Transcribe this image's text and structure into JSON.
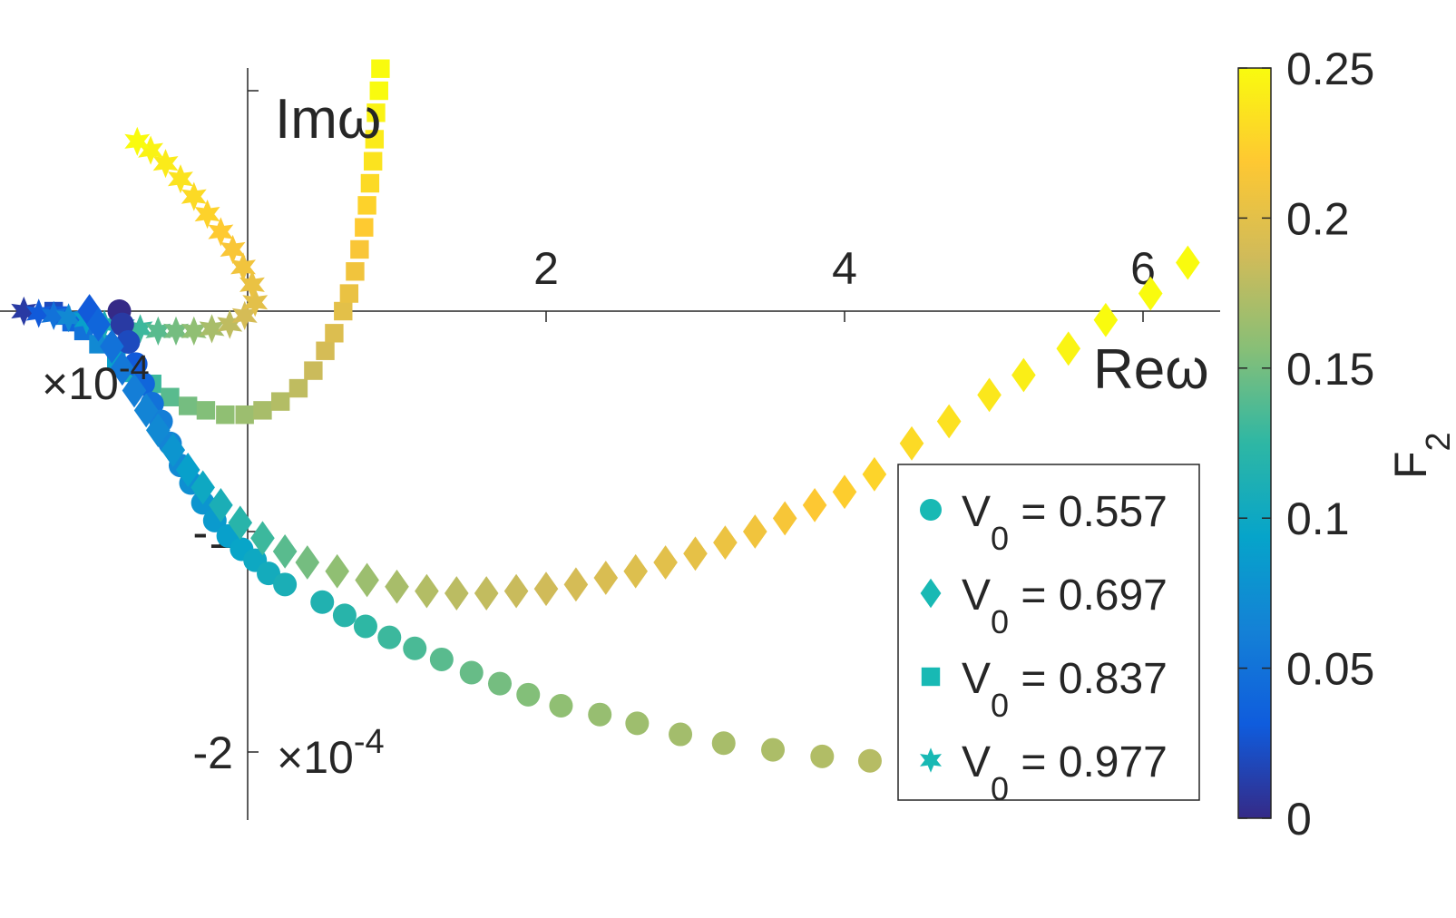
{
  "chart_data": {
    "type": "scatter",
    "xlabel": "Reω",
    "ylabel": "Imω",
    "x_multiplier": "×10-4",
    "y_multiplier": "×10-4",
    "xlim": [
      -0.75,
      6.5
    ],
    "ylim": [
      -2.3,
      1.1
    ],
    "x_ticks": [
      2,
      4,
      6
    ],
    "x_tick_labels": [
      "2",
      "4",
      "6"
    ],
    "y_ticks": [
      -1,
      -2
    ],
    "y_tick_labels": [
      "-1",
      "-2"
    ],
    "grid": false,
    "legend_position": "bottom-right",
    "colorbar": {
      "label": "F2",
      "label_main": "F",
      "label_sub": "2",
      "range": [
        0,
        0.25
      ],
      "ticks": [
        0,
        0.05,
        0.1,
        0.15,
        0.2,
        0.25
      ],
      "tick_labels": [
        "0",
        "0.05",
        "0.1",
        "0.15",
        "0.2",
        "0.25"
      ],
      "colormap": "parula"
    },
    "series": [
      {
        "name": "V0 = 0.557",
        "name_main": "V",
        "name_sub": "0",
        "name_rest": " = 0.557",
        "marker": "circle",
        "legend_color": "#18b9b4",
        "points": [
          [
            -0.86,
            0.0,
            0.0
          ],
          [
            -0.84,
            -0.06,
            0.01
          ],
          [
            -0.8,
            -0.14,
            0.02
          ],
          [
            -0.75,
            -0.24,
            0.03
          ],
          [
            -0.7,
            -0.33,
            0.04
          ],
          [
            -0.64,
            -0.42,
            0.05
          ],
          [
            -0.58,
            -0.5,
            0.06
          ],
          [
            -0.52,
            -0.6,
            0.065
          ],
          [
            -0.45,
            -0.7,
            0.07
          ],
          [
            -0.38,
            -0.78,
            0.075
          ],
          [
            -0.3,
            -0.87,
            0.08
          ],
          [
            -0.22,
            -0.95,
            0.085
          ],
          [
            -0.13,
            -1.02,
            0.09
          ],
          [
            -0.04,
            -1.08,
            0.095
          ],
          [
            0.05,
            -1.13,
            0.1
          ],
          [
            0.14,
            -1.19,
            0.105
          ],
          [
            0.25,
            -1.24,
            0.11
          ],
          [
            0.5,
            -1.32,
            0.115
          ],
          [
            0.65,
            -1.38,
            0.12
          ],
          [
            0.79,
            -1.43,
            0.125
          ],
          [
            0.95,
            -1.48,
            0.13
          ],
          [
            1.12,
            -1.53,
            0.135
          ],
          [
            1.3,
            -1.58,
            0.14
          ],
          [
            1.5,
            -1.64,
            0.145
          ],
          [
            1.69,
            -1.69,
            0.15
          ],
          [
            1.88,
            -1.74,
            0.155
          ],
          [
            2.1,
            -1.79,
            0.16
          ],
          [
            2.36,
            -1.83,
            0.163
          ],
          [
            2.61,
            -1.87,
            0.166
          ],
          [
            2.9,
            -1.92,
            0.168
          ],
          [
            3.19,
            -1.96,
            0.17
          ],
          [
            3.52,
            -1.99,
            0.172
          ],
          [
            3.85,
            -2.02,
            0.174
          ],
          [
            4.17,
            -2.04,
            0.176
          ]
        ]
      },
      {
        "name": "V0 = 0.697",
        "name_main": "V",
        "name_sub": "0",
        "name_rest": " = 0.697",
        "marker": "diamond",
        "legend_color": "#18b9b4",
        "points": [
          [
            -1.06,
            0.0,
            0.03
          ],
          [
            -1.0,
            -0.06,
            0.04
          ],
          [
            -0.91,
            -0.16,
            0.05
          ],
          [
            -0.84,
            -0.26,
            0.055
          ],
          [
            -0.76,
            -0.36,
            0.06
          ],
          [
            -0.68,
            -0.45,
            0.065
          ],
          [
            -0.6,
            -0.54,
            0.07
          ],
          [
            -0.5,
            -0.63,
            0.08
          ],
          [
            -0.4,
            -0.72,
            0.09
          ],
          [
            -0.3,
            -0.8,
            0.1
          ],
          [
            -0.18,
            -0.88,
            0.11
          ],
          [
            -0.05,
            -0.96,
            0.12
          ],
          [
            0.1,
            -1.03,
            0.13
          ],
          [
            0.25,
            -1.09,
            0.14
          ],
          [
            0.4,
            -1.14,
            0.15
          ],
          [
            0.6,
            -1.18,
            0.16
          ],
          [
            0.8,
            -1.22,
            0.165
          ],
          [
            1.0,
            -1.25,
            0.17
          ],
          [
            1.2,
            -1.27,
            0.175
          ],
          [
            1.4,
            -1.28,
            0.178
          ],
          [
            1.6,
            -1.28,
            0.181
          ],
          [
            1.8,
            -1.27,
            0.184
          ],
          [
            2.0,
            -1.26,
            0.187
          ],
          [
            2.2,
            -1.24,
            0.19
          ],
          [
            2.4,
            -1.21,
            0.193
          ],
          [
            2.6,
            -1.18,
            0.196
          ],
          [
            2.8,
            -1.14,
            0.199
          ],
          [
            3.0,
            -1.1,
            0.202
          ],
          [
            3.2,
            -1.05,
            0.206
          ],
          [
            3.4,
            -1.0,
            0.21
          ],
          [
            3.6,
            -0.94,
            0.214
          ],
          [
            3.8,
            -0.88,
            0.218
          ],
          [
            4.0,
            -0.82,
            0.222
          ],
          [
            4.2,
            -0.74,
            0.226
          ],
          [
            4.45,
            -0.6,
            0.23
          ],
          [
            4.7,
            -0.5,
            0.234
          ],
          [
            4.97,
            -0.38,
            0.238
          ],
          [
            5.2,
            -0.29,
            0.242
          ],
          [
            5.5,
            -0.17,
            0.246
          ],
          [
            5.75,
            -0.04,
            0.25
          ],
          [
            6.05,
            0.08,
            0.252
          ],
          [
            6.3,
            0.22,
            0.255
          ]
        ]
      },
      {
        "name": "V0 = 0.837",
        "name_main": "V",
        "name_sub": "0",
        "name_rest": " = 0.837",
        "marker": "square",
        "legend_color": "#18b9b4",
        "points": [
          [
            -1.3,
            0.0,
            0.02
          ],
          [
            -1.25,
            -0.02,
            0.03
          ],
          [
            -1.18,
            -0.05,
            0.04
          ],
          [
            -1.1,
            -0.09,
            0.05
          ],
          [
            -1.0,
            -0.15,
            0.07
          ],
          [
            -0.88,
            -0.22,
            0.09
          ],
          [
            -0.76,
            -0.28,
            0.11
          ],
          [
            -0.64,
            -0.33,
            0.13
          ],
          [
            -0.52,
            -0.39,
            0.14
          ],
          [
            -0.4,
            -0.43,
            0.15
          ],
          [
            -0.28,
            -0.45,
            0.155
          ],
          [
            -0.15,
            -0.47,
            0.16
          ],
          [
            -0.02,
            -0.47,
            0.165
          ],
          [
            0.1,
            -0.45,
            0.17
          ],
          [
            0.22,
            -0.41,
            0.175
          ],
          [
            0.34,
            -0.35,
            0.18
          ],
          [
            0.44,
            -0.27,
            0.185
          ],
          [
            0.52,
            -0.18,
            0.19
          ],
          [
            0.58,
            -0.1,
            0.195
          ],
          [
            0.64,
            0.0,
            0.2
          ],
          [
            0.68,
            0.08,
            0.205
          ],
          [
            0.72,
            0.18,
            0.21
          ],
          [
            0.75,
            0.28,
            0.215
          ],
          [
            0.78,
            0.38,
            0.22
          ],
          [
            0.8,
            0.48,
            0.225
          ],
          [
            0.82,
            0.58,
            0.23
          ],
          [
            0.84,
            0.68,
            0.235
          ],
          [
            0.85,
            0.78,
            0.24
          ],
          [
            0.86,
            0.9,
            0.245
          ],
          [
            0.88,
            1.0,
            0.25
          ],
          [
            0.89,
            1.1,
            0.255
          ]
        ]
      },
      {
        "name": "V0 = 0.977",
        "name_main": "V",
        "name_sub": "0",
        "name_rest": " = 0.977",
        "marker": "star",
        "legend_color": "#18b9b4",
        "points": [
          [
            -1.5,
            0.0,
            0.01
          ],
          [
            -1.4,
            -0.01,
            0.03
          ],
          [
            -1.3,
            -0.02,
            0.05
          ],
          [
            -1.2,
            -0.03,
            0.07
          ],
          [
            -1.08,
            -0.04,
            0.09
          ],
          [
            -0.96,
            -0.06,
            0.11
          ],
          [
            -0.84,
            -0.07,
            0.12
          ],
          [
            -0.72,
            -0.08,
            0.13
          ],
          [
            -0.6,
            -0.09,
            0.14
          ],
          [
            -0.48,
            -0.09,
            0.15
          ],
          [
            -0.36,
            -0.09,
            0.16
          ],
          [
            -0.24,
            -0.08,
            0.17
          ],
          [
            -0.12,
            -0.06,
            0.18
          ],
          [
            -0.02,
            -0.02,
            0.19
          ],
          [
            0.05,
            0.04,
            0.2
          ],
          [
            0.03,
            0.12,
            0.205
          ],
          [
            -0.03,
            0.2,
            0.21
          ],
          [
            -0.1,
            0.28,
            0.215
          ],
          [
            -0.18,
            0.36,
            0.22
          ],
          [
            -0.27,
            0.44,
            0.225
          ],
          [
            -0.36,
            0.52,
            0.23
          ],
          [
            -0.45,
            0.6,
            0.235
          ],
          [
            -0.55,
            0.67,
            0.24
          ],
          [
            -0.65,
            0.73,
            0.245
          ],
          [
            -0.74,
            0.77,
            0.25
          ]
        ]
      }
    ]
  }
}
